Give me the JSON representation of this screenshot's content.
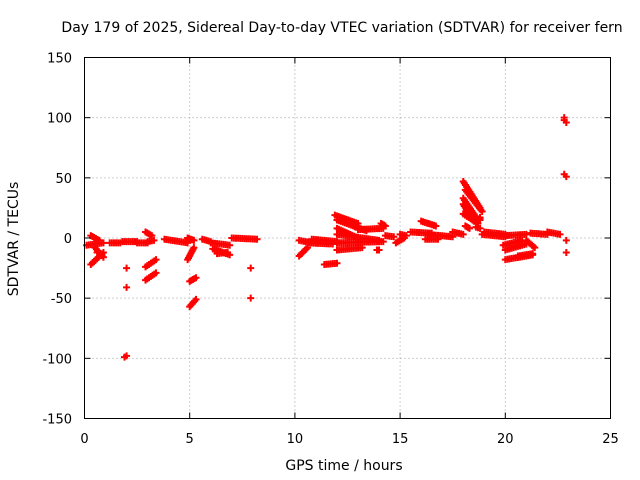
{
  "chart_data": {
    "type": "scatter",
    "title": "Day 179 of 2025, Sidereal Day-to-day VTEC variation (SDTVAR) for receiver fern",
    "xlabel": "GPS time / hours",
    "ylabel": "SDTVAR / TECUs",
    "xlim": [
      0,
      25
    ],
    "ylim": [
      -150,
      150
    ],
    "x_ticks": [
      0,
      5,
      10,
      15,
      20,
      25
    ],
    "y_ticks": [
      -150,
      -100,
      -50,
      0,
      50,
      100,
      150
    ],
    "grid": true,
    "marker": "plus",
    "color": "#ff0000",
    "series": [
      {
        "name": "SDTVAR",
        "segments": [
          {
            "x0": 0.1,
            "y0": -6,
            "x1": 0.9,
            "y1": -4
          },
          {
            "x0": 0.3,
            "y0": 2,
            "x1": 0.7,
            "y1": -2
          },
          {
            "x0": 0.3,
            "y0": -22,
            "x1": 0.9,
            "y1": -12
          },
          {
            "x0": 0.5,
            "y0": -8,
            "x1": 0.9,
            "y1": -16
          },
          {
            "x0": 1.2,
            "y0": -4,
            "x1": 1.7,
            "y1": -4
          },
          {
            "x0": 1.8,
            "y0": -3,
            "x1": 2.5,
            "y1": -3
          },
          {
            "x0": 2.5,
            "y0": -4,
            "x1": 3.0,
            "y1": -4
          },
          {
            "x0": 3.0,
            "y0": -3,
            "x1": 3.3,
            "y1": -2
          },
          {
            "x0": 2.9,
            "y0": 5,
            "x1": 3.2,
            "y1": 2
          },
          {
            "x0": 2.9,
            "y0": -24,
            "x1": 3.4,
            "y1": -18
          },
          {
            "x0": 2.9,
            "y0": -35,
            "x1": 3.4,
            "y1": -29
          },
          {
            "x0": 3.8,
            "y0": -1,
            "x1": 4.9,
            "y1": -4
          },
          {
            "x0": 4.9,
            "y0": 0,
            "x1": 5.2,
            "y1": -2
          },
          {
            "x0": 4.9,
            "y0": -18,
            "x1": 5.2,
            "y1": -8
          },
          {
            "x0": 5.0,
            "y0": -36,
            "x1": 5.3,
            "y1": -33
          },
          {
            "x0": 5.0,
            "y0": -57,
            "x1": 5.3,
            "y1": -51
          },
          {
            "x0": 5.6,
            "y0": -1,
            "x1": 6.0,
            "y1": -3
          },
          {
            "x0": 6.0,
            "y0": -4,
            "x1": 6.9,
            "y1": -6
          },
          {
            "x0": 6.1,
            "y0": -9,
            "x1": 6.9,
            "y1": -14
          },
          {
            "x0": 6.3,
            "y0": -13,
            "x1": 6.8,
            "y1": -12
          },
          {
            "x0": 7.0,
            "y0": 0,
            "x1": 8.2,
            "y1": -1
          },
          {
            "x0": 10.2,
            "y0": -2,
            "x1": 10.8,
            "y1": -4
          },
          {
            "x0": 10.2,
            "y0": -15,
            "x1": 10.6,
            "y1": -8
          },
          {
            "x0": 10.8,
            "y0": -1,
            "x1": 12.0,
            "y1": -3
          },
          {
            "x0": 10.6,
            "y0": -4,
            "x1": 11.8,
            "y1": -5
          },
          {
            "x0": 11.4,
            "y0": -22,
            "x1": 12.0,
            "y1": -21
          },
          {
            "x0": 11.9,
            "y0": 19,
            "x1": 13.0,
            "y1": 12
          },
          {
            "x0": 12.0,
            "y0": 15,
            "x1": 13.4,
            "y1": 6
          },
          {
            "x0": 12.0,
            "y0": 8,
            "x1": 13.0,
            "y1": 0
          },
          {
            "x0": 12.0,
            "y0": 3,
            "x1": 14.0,
            "y1": -2
          },
          {
            "x0": 12.0,
            "y0": -4,
            "x1": 14.2,
            "y1": -3
          },
          {
            "x0": 12.0,
            "y0": -10,
            "x1": 13.2,
            "y1": -8
          },
          {
            "x0": 13.0,
            "y0": 7,
            "x1": 14.2,
            "y1": 8
          },
          {
            "x0": 14.1,
            "y0": 12,
            "x1": 14.3,
            "y1": 10
          },
          {
            "x0": 13.9,
            "y0": -10,
            "x1": 14.0,
            "y1": -10
          },
          {
            "x0": 14.3,
            "y0": 2,
            "x1": 14.7,
            "y1": 1
          },
          {
            "x0": 14.8,
            "y0": -4,
            "x1": 15.2,
            "y1": 0
          },
          {
            "x0": 15.0,
            "y0": 3,
            "x1": 15.3,
            "y1": 2
          },
          {
            "x0": 15.5,
            "y0": 5,
            "x1": 16.5,
            "y1": 4
          },
          {
            "x0": 16.0,
            "y0": 14,
            "x1": 16.7,
            "y1": 10
          },
          {
            "x0": 16.3,
            "y0": 3,
            "x1": 17.5,
            "y1": 1
          },
          {
            "x0": 16.2,
            "y0": -1,
            "x1": 16.8,
            "y1": -1
          },
          {
            "x0": 17.5,
            "y0": 5,
            "x1": 18.0,
            "y1": 3
          },
          {
            "x0": 18.0,
            "y0": 47,
            "x1": 18.8,
            "y1": 25
          },
          {
            "x0": 18.1,
            "y0": 40,
            "x1": 18.9,
            "y1": 22
          },
          {
            "x0": 18.0,
            "y0": 33,
            "x1": 18.7,
            "y1": 15
          },
          {
            "x0": 18.0,
            "y0": 28,
            "x1": 18.5,
            "y1": 14
          },
          {
            "x0": 18.0,
            "y0": 20,
            "x1": 18.7,
            "y1": 12
          },
          {
            "x0": 18.1,
            "y0": 10,
            "x1": 18.3,
            "y1": 8
          },
          {
            "x0": 18.8,
            "y0": 17,
            "x1": 18.8,
            "y1": 15
          },
          {
            "x0": 18.6,
            "y0": 9,
            "x1": 18.8,
            "y1": 8
          },
          {
            "x0": 18.9,
            "y0": 3,
            "x1": 20.0,
            "y1": 1
          },
          {
            "x0": 19.0,
            "y0": 5,
            "x1": 20.0,
            "y1": 3
          },
          {
            "x0": 20.0,
            "y0": 2,
            "x1": 21.0,
            "y1": 3
          },
          {
            "x0": 19.9,
            "y0": -6,
            "x1": 20.8,
            "y1": -2
          },
          {
            "x0": 20.0,
            "y0": -10,
            "x1": 21.0,
            "y1": -5
          },
          {
            "x0": 20.0,
            "y0": -18,
            "x1": 21.3,
            "y1": -14
          },
          {
            "x0": 20.6,
            "y0": -15,
            "x1": 21.3,
            "y1": -13
          },
          {
            "x0": 21.2,
            "y0": 4,
            "x1": 22.0,
            "y1": 3
          },
          {
            "x0": 22.0,
            "y0": 5,
            "x1": 22.6,
            "y1": 3
          },
          {
            "x0": 21.0,
            "y0": -2,
            "x1": 21.4,
            "y1": -8
          }
        ],
        "points": [
          {
            "x": 0.6,
            "y": -12
          },
          {
            "x": 2.0,
            "y": -25
          },
          {
            "x": 2.0,
            "y": -41
          },
          {
            "x": 2.0,
            "y": -98
          },
          {
            "x": 1.9,
            "y": -99
          },
          {
            "x": 7.9,
            "y": -25
          },
          {
            "x": 7.9,
            "y": -50
          },
          {
            "x": 14.1,
            "y": 12
          },
          {
            "x": 13.9,
            "y": -10
          },
          {
            "x": 22.8,
            "y": 100
          },
          {
            "x": 22.8,
            "y": 98
          },
          {
            "x": 22.9,
            "y": 96
          },
          {
            "x": 22.8,
            "y": 53
          },
          {
            "x": 22.9,
            "y": 51
          },
          {
            "x": 22.9,
            "y": -2
          },
          {
            "x": 22.9,
            "y": -12
          }
        ]
      }
    ]
  }
}
